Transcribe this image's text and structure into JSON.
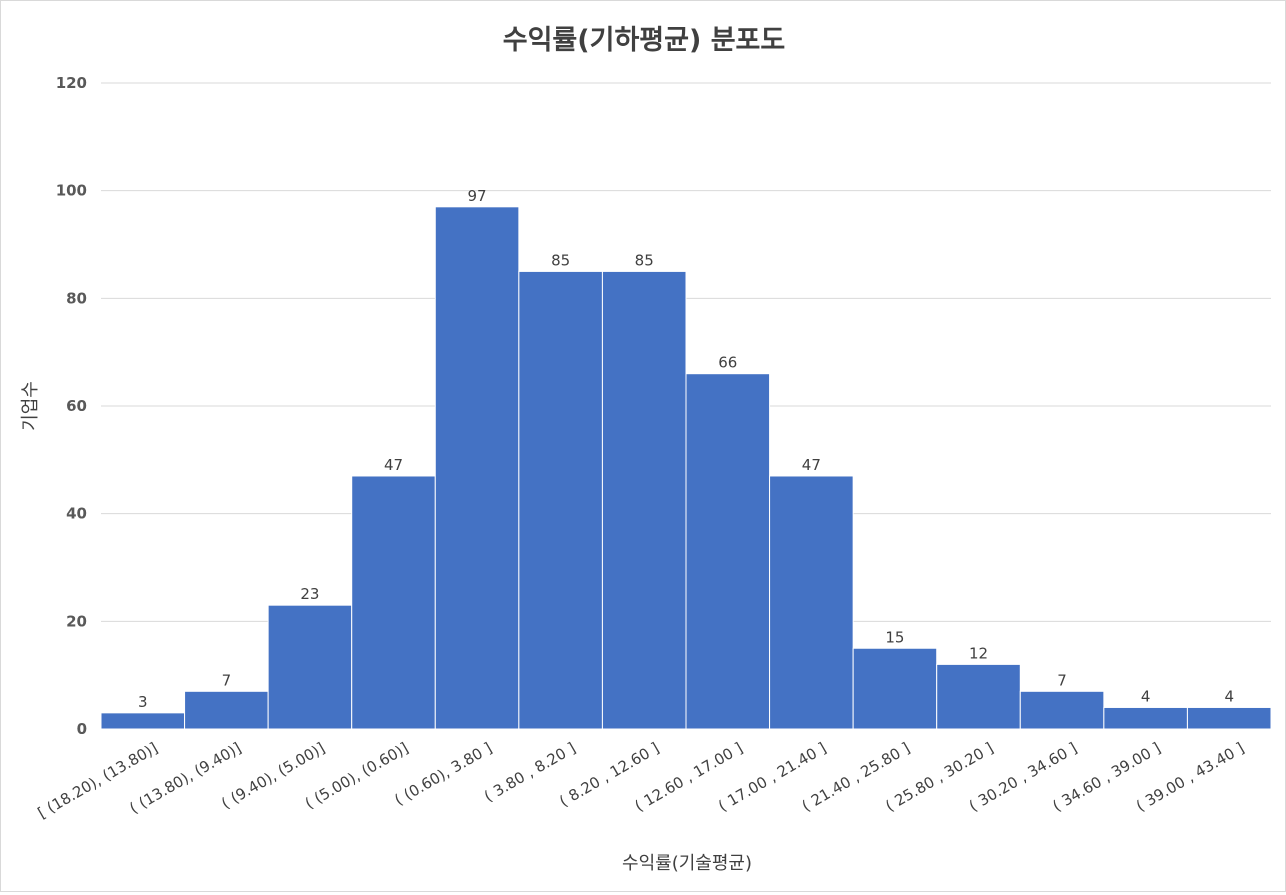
{
  "chart_data": {
    "type": "bar",
    "title": "수익률(기하평균) 분포도",
    "xlabel": "수익률(기술평균)",
    "ylabel": "기업수",
    "ylim": [
      0,
      120
    ],
    "yticks": [
      0,
      20,
      40,
      60,
      80,
      100,
      120
    ],
    "grid": true,
    "legend": "none",
    "bar_color": "#4472C4",
    "categories": [
      "[ (18.20),  (13.80)]",
      "( (13.80),  (9.40)]",
      "( (9.40),  (5.00)]",
      "( (5.00),  (0.60)]",
      "( (0.60),  3.80 ]",
      "( 3.80 ,  8.20 ]",
      "( 8.20 ,  12.60 ]",
      "( 12.60 ,  17.00 ]",
      "( 17.00 ,  21.40 ]",
      "( 21.40 ,  25.80 ]",
      "( 25.80 ,  30.20 ]",
      "( 30.20 ,  34.60 ]",
      "( 34.60 ,  39.00 ]",
      "( 39.00 ,  43.40 ]"
    ],
    "values": [
      3,
      7,
      23,
      47,
      97,
      85,
      85,
      66,
      47,
      15,
      12,
      7,
      4,
      4
    ]
  }
}
